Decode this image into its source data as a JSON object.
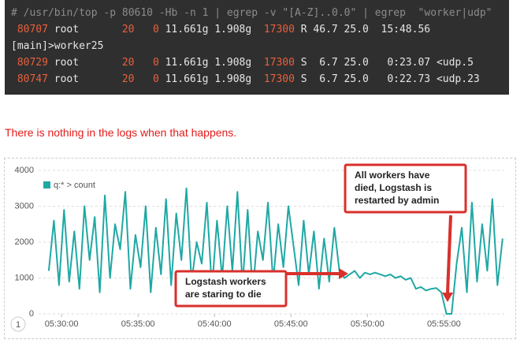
{
  "terminal": {
    "lines": [
      "# /usr/bin/top -p 80610 -Hb -n 1 | egrep -v \"[A-Z]..0.0\" | egrep  \"worker|udp\"",
      [
        "80707",
        "root",
        "20",
        "0",
        "11.661g",
        "1.908g",
        "17300",
        "R",
        "46.7",
        "25.0",
        "15:48.56",
        ""
      ],
      "[main]>worker25",
      [
        "80729",
        "root",
        "20",
        "0",
        "11.661g",
        "1.908g",
        "17300",
        "S",
        "6.7",
        "25.0",
        "0:23.07",
        "<udp.5"
      ],
      [
        "80747",
        "root",
        "20",
        "0",
        "11.661g",
        "1.908g",
        "17300",
        "S",
        "6.7",
        "25.0",
        "0:22.73",
        "<udp.23"
      ]
    ]
  },
  "note": "There is nothing in the logs when that happens.",
  "badge": "1",
  "chart_data": {
    "type": "line",
    "x": [
      "05:29:10",
      "05:29:30",
      "05:29:50",
      "05:30:10",
      "05:30:30",
      "05:30:50",
      "05:31:10",
      "05:31:30",
      "05:31:50",
      "05:32:10",
      "05:32:30",
      "05:32:50",
      "05:33:10",
      "05:33:30",
      "05:33:50",
      "05:34:10",
      "05:34:30",
      "05:34:50",
      "05:35:10",
      "05:35:30",
      "05:35:50",
      "05:36:10",
      "05:36:30",
      "05:36:50",
      "05:37:10",
      "05:37:30",
      "05:37:50",
      "05:38:10",
      "05:38:30",
      "05:38:50",
      "05:39:10",
      "05:39:30",
      "05:39:50",
      "05:40:10",
      "05:40:30",
      "05:40:50",
      "05:41:10",
      "05:41:30",
      "05:41:50",
      "05:42:10",
      "05:42:30",
      "05:42:50",
      "05:43:10",
      "05:43:30",
      "05:43:50",
      "05:44:10",
      "05:44:30",
      "05:44:50",
      "05:45:10",
      "05:45:30",
      "05:45:50",
      "05:46:10",
      "05:46:30",
      "05:46:50",
      "05:47:10",
      "05:47:30",
      "05:47:50",
      "05:48:10",
      "05:48:30",
      "05:48:50",
      "05:49:10",
      "05:49:30",
      "05:49:50",
      "05:50:10",
      "05:50:30",
      "05:50:50",
      "05:51:10",
      "05:51:30",
      "05:51:50",
      "05:52:10",
      "05:52:30",
      "05:52:50",
      "05:53:10",
      "05:53:30",
      "05:53:50",
      "05:54:10",
      "05:54:30",
      "05:54:50",
      "05:55:10",
      "05:55:30",
      "05:55:50",
      "05:56:10",
      "05:56:30",
      "05:56:50",
      "05:57:10",
      "05:57:30",
      "05:57:50",
      "05:58:10",
      "05:58:30",
      "05:58:50"
    ],
    "series": [
      {
        "name": "q:* > count",
        "color": "#1fa8a4",
        "values": [
          1200,
          2600,
          800,
          2900,
          900,
          2300,
          700,
          3000,
          1500,
          2700,
          600,
          3300,
          1000,
          2500,
          1800,
          3400,
          700,
          2200,
          1300,
          3000,
          600,
          2400,
          1100,
          3200,
          800,
          2800,
          1500,
          3500,
          900,
          2000,
          1400,
          3100,
          700,
          2600,
          1000,
          3000,
          1200,
          3400,
          800,
          2900,
          600,
          2300,
          1500,
          3100,
          900,
          2500,
          1300,
          3000,
          1900,
          800,
          2600,
          1100,
          2300,
          700,
          2100,
          900,
          2400,
          1200,
          1000,
          1100,
          1200,
          1000,
          1150,
          1100,
          1150,
          1100,
          1050,
          1100,
          1000,
          1050,
          950,
          1000,
          700,
          750,
          650,
          700,
          720,
          600,
          0,
          0,
          1400,
          2400,
          600,
          3100,
          900,
          2500,
          1200,
          3200,
          800,
          2100
        ]
      }
    ],
    "xlim": [
      "05:28:30",
      "05:59:00"
    ],
    "xticks": [
      "05:30:00",
      "05:35:00",
      "05:40:00",
      "05:45:00",
      "05:50:00",
      "05:55:00"
    ],
    "ylim": [
      0,
      4000
    ],
    "yticks": [
      0,
      1000,
      2000,
      3000,
      4000
    ],
    "grid": true,
    "legend": "top-left",
    "annotations": [
      {
        "lines": [
          "Logstash workers",
          "are staring to die"
        ]
      },
      {
        "lines": [
          "All workers have",
          "died, Logstash is",
          "restarted by admin"
        ]
      }
    ]
  }
}
